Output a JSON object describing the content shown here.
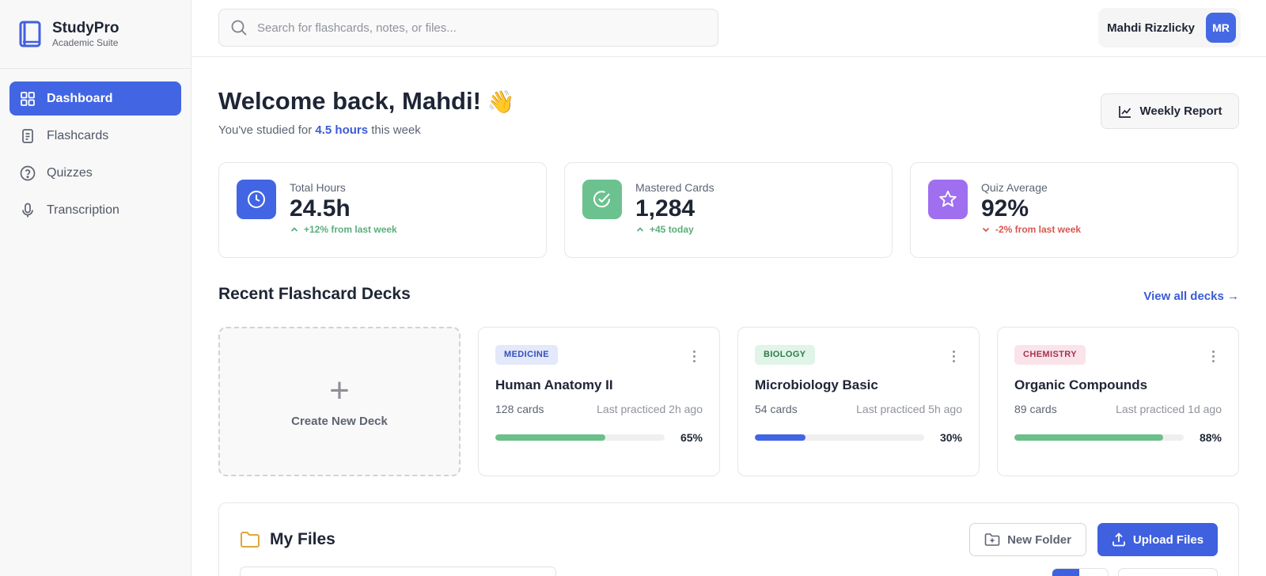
{
  "brand": {
    "name": "StudyPro",
    "subtitle": "Academic Suite"
  },
  "nav": [
    {
      "label": "Dashboard",
      "icon": "grid-icon",
      "active": true
    },
    {
      "label": "Flashcards",
      "icon": "document-icon",
      "active": false
    },
    {
      "label": "Quizzes",
      "icon": "question-circle-icon",
      "active": false
    },
    {
      "label": "Transcription",
      "icon": "microphone-icon",
      "active": false
    }
  ],
  "search": {
    "placeholder": "Search for flashcards, notes, or files..."
  },
  "user": {
    "name": "Mahdi Rizzlicky",
    "initials": "MR"
  },
  "header": {
    "welcome": "Welcome back, Mahdi!",
    "wave": "👋",
    "sub_prefix": "You've studied for",
    "sub_highlight": "4.5 hours",
    "sub_suffix": "this week",
    "report_label": "Weekly Report"
  },
  "stats": [
    {
      "label": "Total Hours",
      "value": "24.5h",
      "delta": "+12% from last week",
      "trend": "up",
      "icon": "clock-icon",
      "color": "#4265e3"
    },
    {
      "label": "Mastered Cards",
      "value": "1,284",
      "delta": "+45 today",
      "trend": "up",
      "icon": "check-circle-icon",
      "color": "#6cc28f"
    },
    {
      "label": "Quiz Average",
      "value": "92%",
      "delta": "-2% from last week",
      "trend": "down",
      "icon": "star-icon",
      "color": "#9f6ff0"
    }
  ],
  "decks_section": {
    "title": "Recent Flashcard Decks",
    "view_all": "View all decks →",
    "create_label": "Create New Deck"
  },
  "decks": [
    {
      "tag": "MEDICINE",
      "tag_bg": "#e3e8fa",
      "tag_color": "#3550b8",
      "title": "Human Anatomy II",
      "cards": "128 cards",
      "last": "Last practiced 2h ago",
      "progress": 0.65,
      "progress_label": "65%",
      "bar_color": "#6cbf8b"
    },
    {
      "tag": "BIOLOGY",
      "tag_bg": "#e0f4e7",
      "tag_color": "#2f7a4c",
      "title": "Microbiology Basic",
      "cards": "54 cards",
      "last": "Last practiced 5h ago",
      "progress": 0.3,
      "progress_label": "30%",
      "bar_color": "#4265e3"
    },
    {
      "tag": "CHEMISTRY",
      "tag_bg": "#fbe3ea",
      "tag_color": "#a33451",
      "title": "Organic Compounds",
      "cards": "89 cards",
      "last": "Last practiced 1d ago",
      "progress": 0.88,
      "progress_label": "88%",
      "bar_color": "#6cbf8b"
    }
  ],
  "files": {
    "title": "My Files",
    "new_folder": "New Folder",
    "upload": "Upload Files"
  }
}
